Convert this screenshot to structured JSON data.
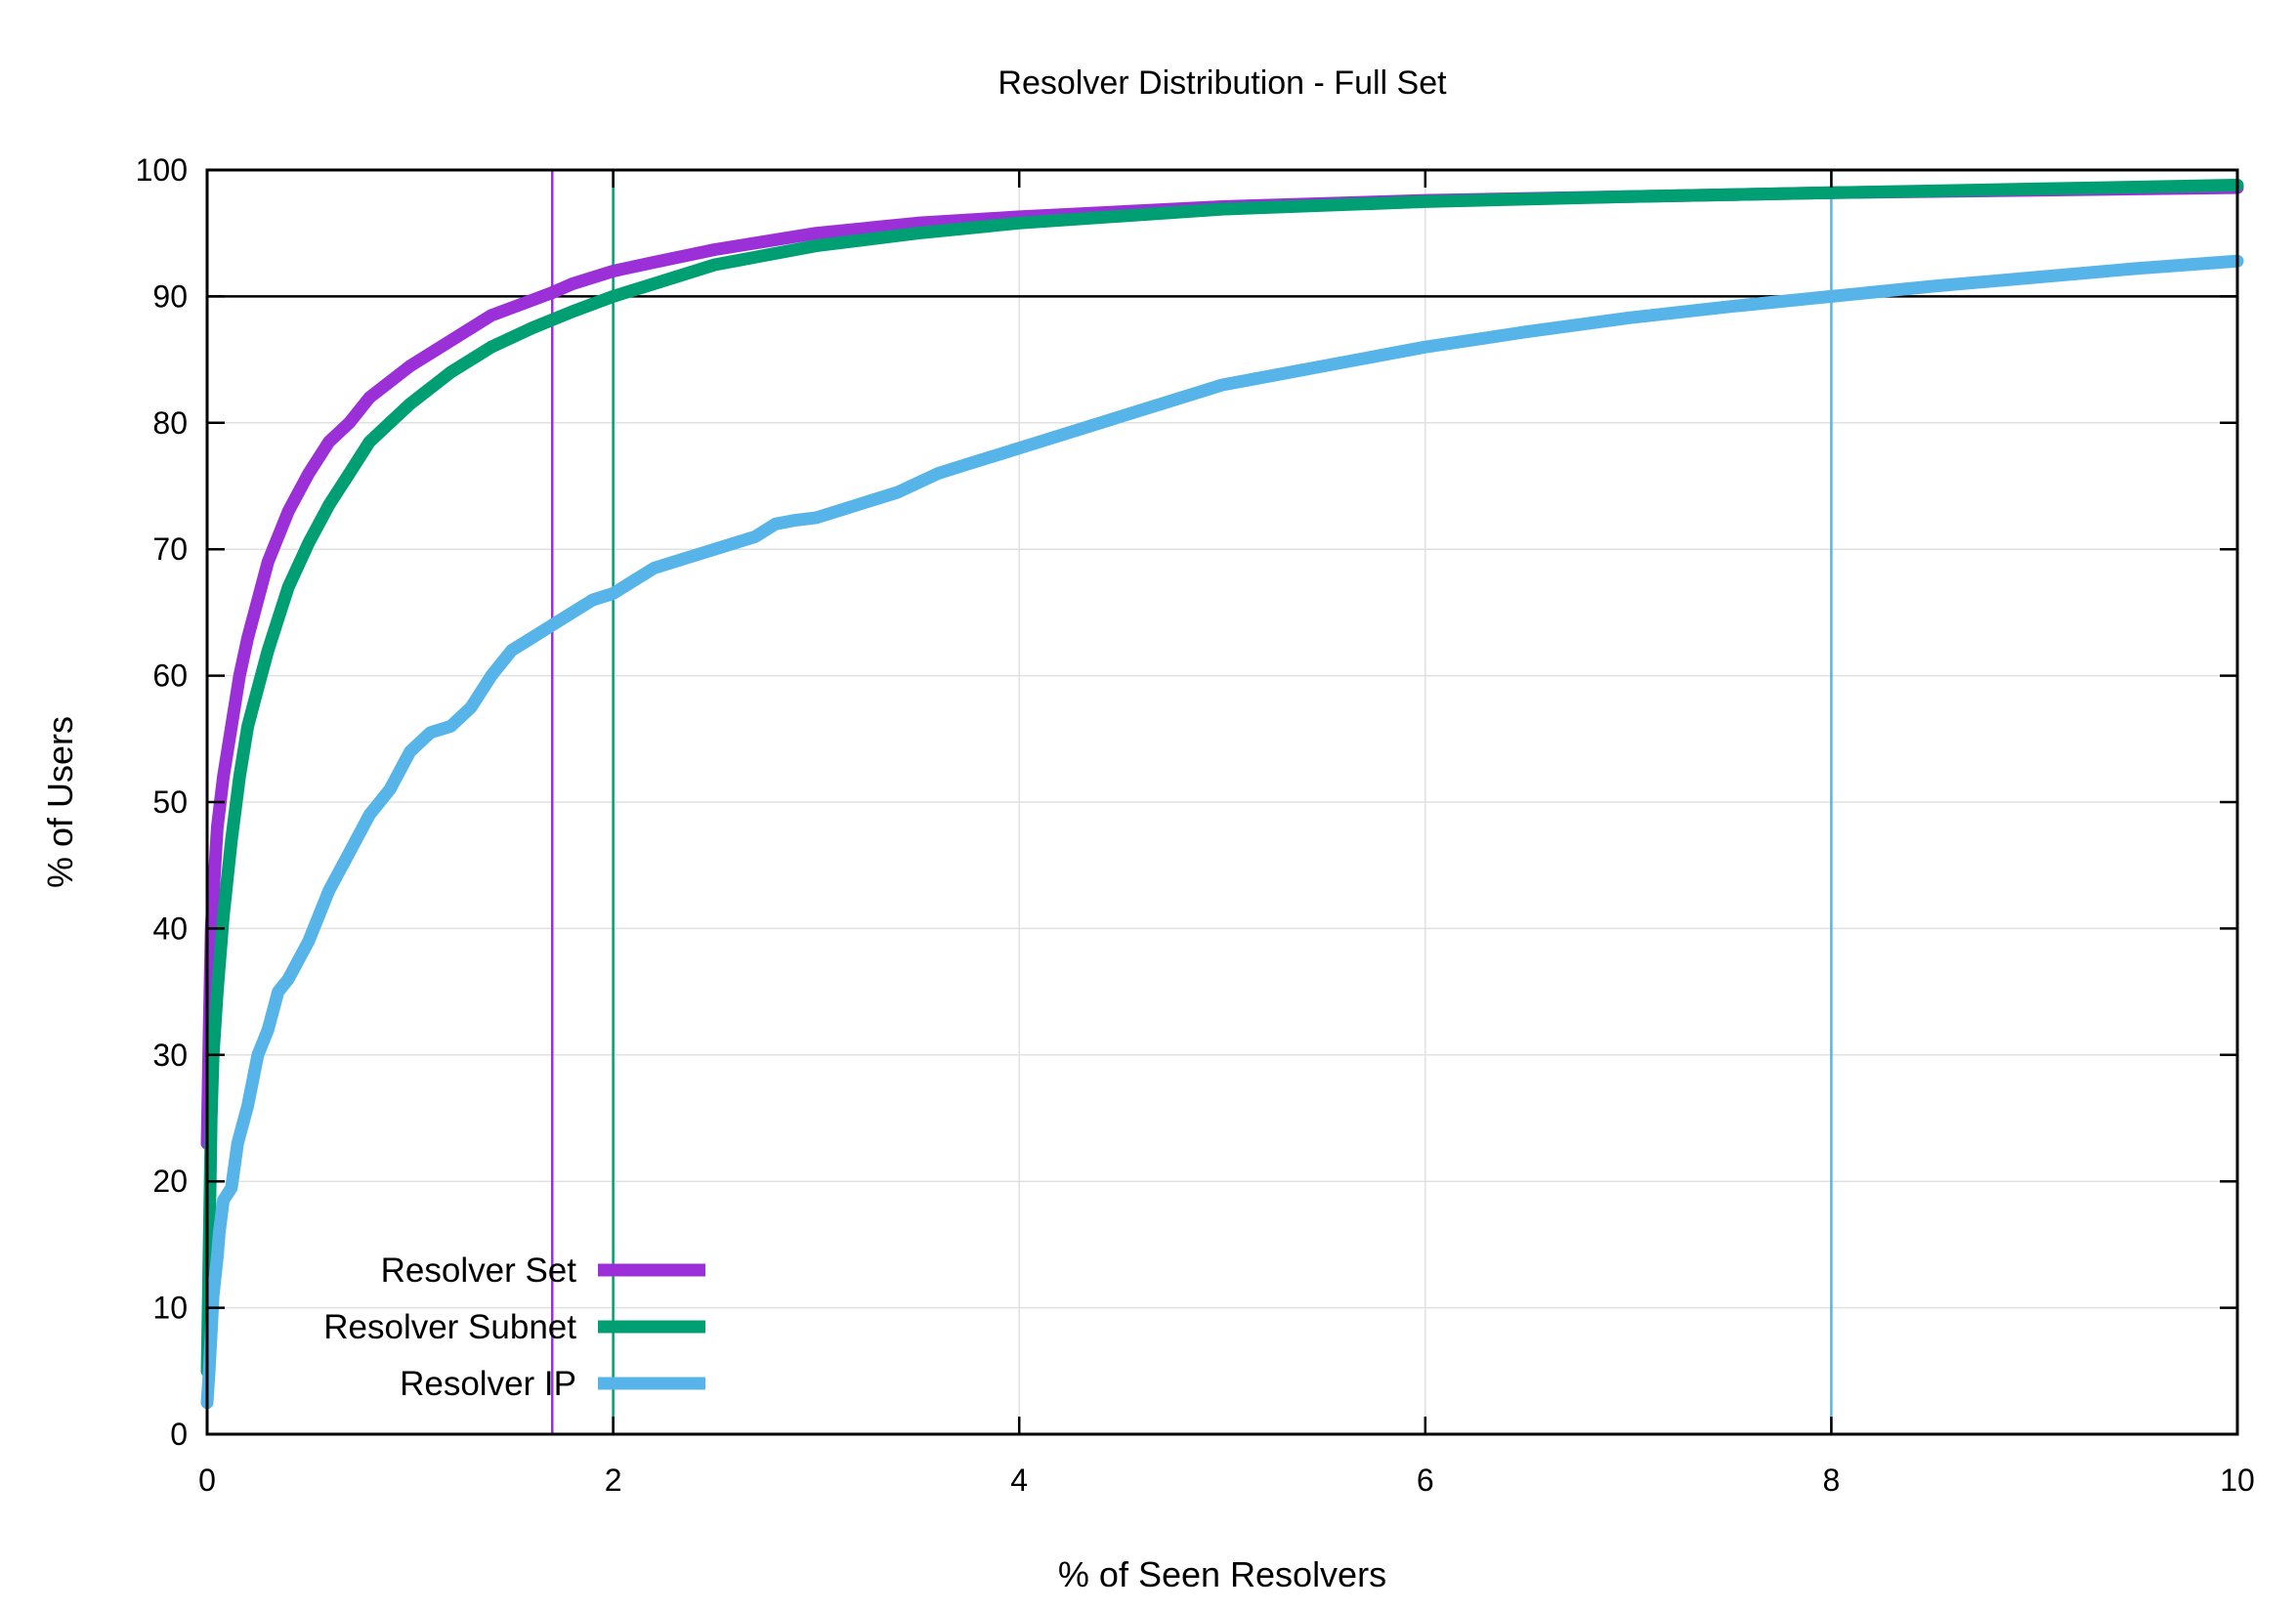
{
  "chart_data": {
    "type": "line",
    "title": "Resolver Distribution - Full Set",
    "xlabel": "% of Seen Resolvers",
    "ylabel": "% of Users",
    "xlim": [
      0,
      10
    ],
    "ylim": [
      0,
      100
    ],
    "x_ticks": [
      0,
      2,
      4,
      6,
      8,
      10
    ],
    "y_ticks": [
      0,
      10,
      20,
      30,
      40,
      50,
      60,
      70,
      80,
      90,
      100
    ],
    "grid": true,
    "legend_position": "bottom-left",
    "reference_lines": [
      {
        "orientation": "horizontal",
        "y": 90,
        "color": "#000000"
      },
      {
        "orientation": "vertical",
        "x": 1.7,
        "color": "#9b30d9"
      },
      {
        "orientation": "vertical",
        "x": 2.0,
        "color": "#009e73"
      },
      {
        "orientation": "vertical",
        "x": 8.0,
        "color": "#56b4e9"
      }
    ],
    "series": [
      {
        "name": "Resolver Set",
        "color": "#9b30d9",
        "x": [
          0,
          0.01,
          0.02,
          0.05,
          0.08,
          0.12,
          0.16,
          0.2,
          0.25,
          0.3,
          0.4,
          0.5,
          0.6,
          0.7,
          0.8,
          1.0,
          1.2,
          1.4,
          1.6,
          1.7,
          1.8,
          2.0,
          2.2,
          2.5,
          3.0,
          3.5,
          4.0,
          5.0,
          6.0,
          7.0,
          8.0,
          9.0,
          10.0
        ],
        "y": [
          23,
          32,
          40,
          48,
          52,
          56,
          60,
          63,
          66,
          69,
          73,
          76,
          78.5,
          80,
          82,
          84.5,
          86.5,
          88.5,
          89.7,
          90.3,
          91,
          92,
          92.7,
          93.7,
          95,
          95.8,
          96.3,
          97.1,
          97.6,
          97.9,
          98.2,
          98.4,
          98.6
        ]
      },
      {
        "name": "Resolver Subnet",
        "color": "#009e73",
        "x": [
          0,
          0.01,
          0.02,
          0.03,
          0.05,
          0.08,
          0.12,
          0.16,
          0.2,
          0.25,
          0.3,
          0.4,
          0.5,
          0.6,
          0.7,
          0.8,
          0.9,
          1.0,
          1.2,
          1.4,
          1.6,
          1.8,
          2.0,
          2.2,
          2.5,
          3.0,
          3.5,
          4.0,
          5.0,
          6.0,
          7.0,
          8.0,
          9.0,
          10.0
        ],
        "y": [
          5,
          15,
          25,
          30,
          35,
          41,
          47,
          52,
          56,
          59,
          62,
          67,
          70.5,
          73.5,
          76,
          78.5,
          80,
          81.5,
          84,
          86,
          87.5,
          88.8,
          90,
          91,
          92.5,
          94,
          95,
          95.8,
          96.9,
          97.5,
          97.9,
          98.2,
          98.5,
          98.8
        ]
      },
      {
        "name": "Resolver IP",
        "color": "#56b4e9",
        "x": [
          0,
          0.01,
          0.02,
          0.03,
          0.05,
          0.06,
          0.08,
          0.1,
          0.12,
          0.15,
          0.2,
          0.25,
          0.3,
          0.35,
          0.4,
          0.5,
          0.6,
          0.7,
          0.8,
          0.9,
          1.0,
          1.1,
          1.2,
          1.3,
          1.4,
          1.5,
          1.6,
          1.7,
          1.8,
          1.9,
          2.0,
          2.1,
          2.2,
          2.3,
          2.5,
          2.7,
          2.8,
          2.9,
          3.0,
          3.2,
          3.4,
          3.6,
          3.8,
          4.0,
          4.5,
          5.0,
          5.5,
          6.0,
          6.5,
          7.0,
          7.5,
          8.0,
          8.5,
          9.0,
          9.5,
          10.0
        ],
        "y": [
          2.5,
          5,
          8,
          11,
          14,
          16,
          18.5,
          19,
          19.5,
          23,
          26,
          30,
          32,
          35,
          36,
          39,
          43,
          46,
          49,
          51,
          54,
          55.5,
          56,
          57.5,
          60,
          62,
          63,
          64,
          65,
          66,
          66.5,
          67.5,
          68.5,
          69,
          70,
          71,
          72,
          72.3,
          72.5,
          73.5,
          74.5,
          76,
          77,
          78,
          80.5,
          83,
          84.5,
          86,
          87.2,
          88.3,
          89.2,
          90,
          90.8,
          91.5,
          92.2,
          92.8
        ]
      }
    ]
  }
}
